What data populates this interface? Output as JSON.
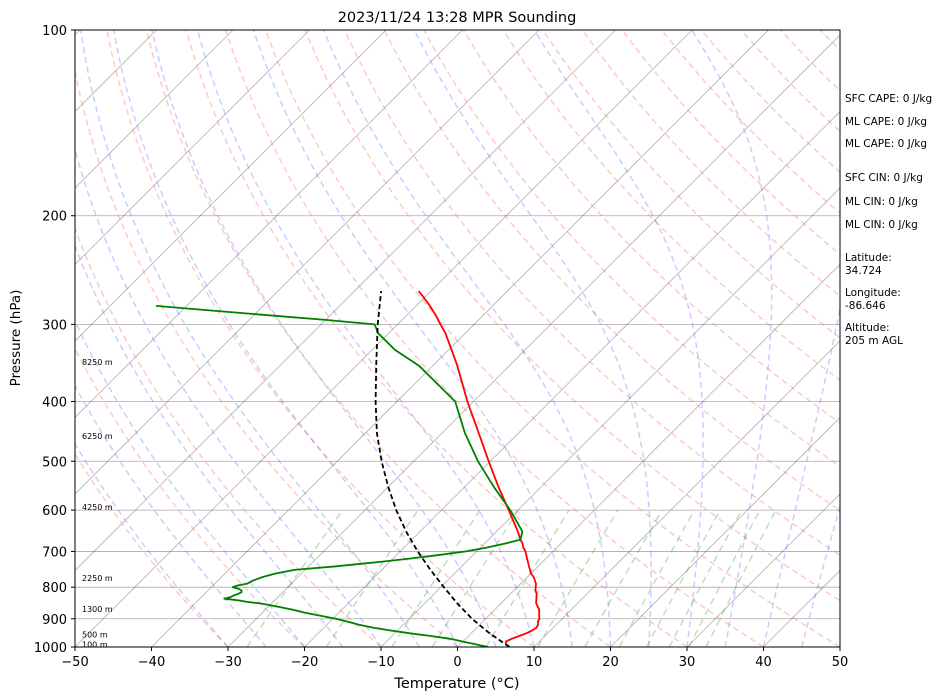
{
  "chart_data": {
    "type": "line",
    "title": "2023/11/24 13:28 MPR Sounding",
    "xlabel": "Temperature (°C)",
    "ylabel": "Pressure (hPa)",
    "xlim": [
      -50,
      50
    ],
    "ylim": [
      1000,
      100
    ],
    "yscale": "log",
    "skew": true,
    "x_ticks": [
      "−50",
      "−40",
      "−30",
      "−20",
      "−10",
      "0",
      "10",
      "20",
      "30",
      "40",
      "50"
    ],
    "y_ticks": [
      100,
      200,
      300,
      400,
      500,
      600,
      700,
      800,
      900,
      1000
    ],
    "height_labels": [
      {
        "label": "100 m",
        "p": 990
      },
      {
        "label": "500 m",
        "p": 955
      },
      {
        "label": "1300 m",
        "p": 868
      },
      {
        "label": "2250 m",
        "p": 773
      },
      {
        "label": "4250 m",
        "p": 593
      },
      {
        "label": "6250 m",
        "p": 455
      },
      {
        "label": "8250 m",
        "p": 345
      }
    ],
    "series": [
      {
        "key": "temperature",
        "color": "#ff0000",
        "p": [
          1000,
          990,
          980,
          970,
          960,
          950,
          940,
          930,
          920,
          910,
          900,
          890,
          880,
          870,
          860,
          850,
          840,
          830,
          820,
          810,
          800,
          790,
          780,
          770,
          760,
          750,
          740,
          730,
          720,
          710,
          700,
          690,
          680,
          670,
          650,
          600,
          550,
          500,
          450,
          400,
          350,
          330,
          310,
          300,
          290,
          280,
          270,
          265
        ],
        "t": [
          6.8,
          6.0,
          5.6,
          6.0,
          6.6,
          7.2,
          7.6,
          7.8,
          7.6,
          7.2,
          7.0,
          6.6,
          6.2,
          5.8,
          5.2,
          4.6,
          4.2,
          3.8,
          3.4,
          2.8,
          2.4,
          2.0,
          1.4,
          0.8,
          0.0,
          -0.6,
          -1.2,
          -1.8,
          -2.4,
          -3.0,
          -3.6,
          -4.4,
          -5.0,
          -5.8,
          -7.2,
          -11.2,
          -15.6,
          -20.2,
          -25.2,
          -30.8,
          -36.8,
          -39.6,
          -42.6,
          -44.4,
          -46.2,
          -48.2,
          -50.4,
          -51.6
        ]
      },
      {
        "key": "dewpoint",
        "color": "#008000",
        "p": [
          1000,
          990,
          980,
          970,
          960,
          950,
          940,
          930,
          920,
          910,
          900,
          890,
          880,
          870,
          860,
          850,
          845,
          840,
          835,
          830,
          825,
          820,
          815,
          810,
          805,
          800,
          795,
          790,
          780,
          770,
          760,
          750,
          740,
          730,
          720,
          710,
          700,
          690,
          680,
          670,
          650,
          600,
          550,
          500,
          450,
          400,
          350,
          330,
          310,
          300,
          295,
          290,
          285,
          280
        ],
        "td": [
          4.0,
          2.0,
          0.0,
          -2.0,
          -4.8,
          -8.0,
          -11.0,
          -13.6,
          -15.8,
          -17.6,
          -19.6,
          -22.0,
          -24.4,
          -26.4,
          -28.8,
          -31.4,
          -33.4,
          -34.8,
          -36.8,
          -36.2,
          -36.0,
          -35.6,
          -35.4,
          -35.6,
          -36.2,
          -37.2,
          -36.8,
          -35.8,
          -35.4,
          -34.6,
          -33.4,
          -31.4,
          -26.4,
          -22.2,
          -18.2,
          -14.6,
          -11.4,
          -9.2,
          -7.4,
          -5.8,
          -6.6,
          -11.0,
          -16.2,
          -21.6,
          -27.0,
          -32.4,
          -41.8,
          -47.0,
          -51.4,
          -53.0,
          -60.0,
          -68.0,
          -76.0,
          -84.0
        ]
      },
      {
        "key": "parcel",
        "color": "#000000",
        "dashed": true,
        "p": [
          1000,
          950,
          900,
          850,
          800,
          750,
          700,
          650,
          600,
          550,
          500,
          450,
          400,
          350,
          300,
          265
        ],
        "t": [
          6.8,
          2.4,
          -1.8,
          -5.7,
          -9.6,
          -13.6,
          -17.7,
          -21.8,
          -25.9,
          -30.0,
          -34.2,
          -38.5,
          -42.8,
          -47.4,
          -52.6,
          -56.5
        ]
      }
    ],
    "indices": {
      "sfc_cape": "SFC CAPE: 0 J/kg",
      "ml_cape_1": "ML CAPE: 0 J/kg",
      "ml_cape_2": "ML CAPE: 0 J/kg",
      "sfc_cin": "SFC CIN: 0 J/kg",
      "ml_cin_1": "ML CIN: 0 J/kg",
      "ml_cin_2": "ML CIN: 0 J/kg"
    },
    "location": {
      "lat_label": "Latitude:",
      "lat_value": "34.724",
      "lon_label": "Longitude:",
      "lon_value": "-86.646",
      "alt_label": "Altitude:",
      "alt_value": "205 m AGL"
    },
    "colors": {
      "dry_adiabat": "#ff7777",
      "moist_adiabat": "#5555ff",
      "mixing_ratio": "#229922",
      "isotherm": "#000000",
      "grid": "#aaaaaa"
    }
  }
}
